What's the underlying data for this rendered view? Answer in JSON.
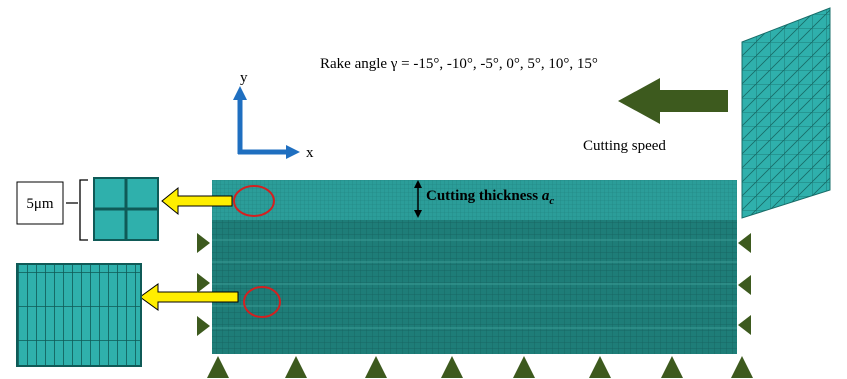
{
  "labels": {
    "rake_angle": "Rake angle γ = -15°, -10°, -5°, 0°, 5°, 10°, 15°",
    "cutting_speed": "Cutting speed",
    "axis_y": "y",
    "axis_x": "x",
    "scale": "5μm",
    "cutting_thickness": "Cutting thickness",
    "thickness_symbol": "a",
    "thickness_subscript": "c"
  }
}
